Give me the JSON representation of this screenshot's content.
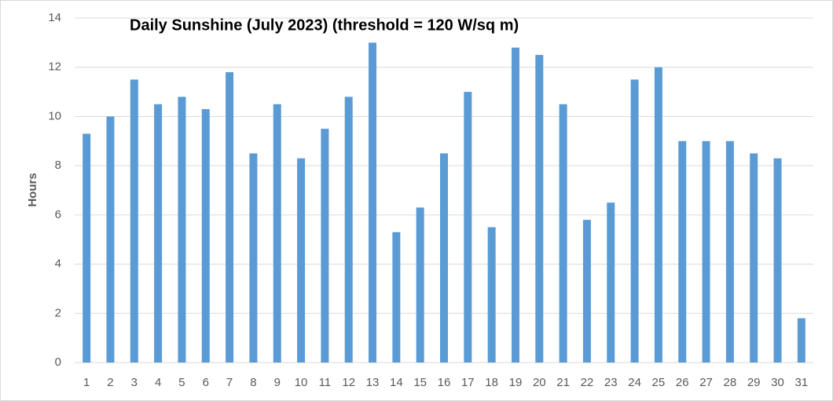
{
  "chart_data": {
    "type": "bar",
    "title": "Daily Sunshine (July 2023) (threshold = 120 W/sq m)",
    "y_label": "Hours",
    "categories": [
      "1",
      "2",
      "3",
      "4",
      "5",
      "6",
      "7",
      "8",
      "9",
      "10",
      "11",
      "12",
      "13",
      "14",
      "15",
      "16",
      "17",
      "18",
      "19",
      "20",
      "21",
      "22",
      "23",
      "24",
      "25",
      "26",
      "27",
      "28",
      "29",
      "30",
      "31"
    ],
    "values": [
      9.3,
      10.0,
      11.5,
      10.5,
      10.8,
      10.3,
      11.8,
      8.5,
      10.5,
      8.3,
      9.5,
      10.8,
      13.0,
      5.3,
      6.3,
      8.5,
      11.0,
      5.5,
      12.8,
      12.5,
      10.5,
      5.8,
      6.5,
      11.5,
      12.0,
      9.0,
      9.0,
      9.0,
      8.5,
      8.3,
      1.8
    ],
    "color": "#5b9bd5",
    "ylim": [
      0,
      14
    ],
    "yticks": [
      0,
      2,
      4,
      6,
      8,
      10,
      12,
      14
    ],
    "grid": true
  }
}
